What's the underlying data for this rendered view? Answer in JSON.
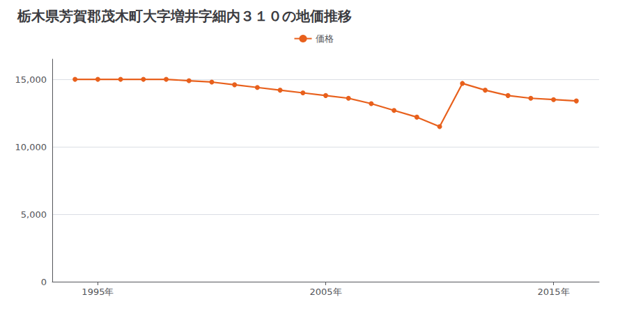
{
  "chart_data": {
    "type": "line",
    "title": "栃木県芳賀郡茂木町大字増井字細内３１０の地価推移",
    "x": [
      1994,
      1995,
      1996,
      1997,
      1998,
      1999,
      2000,
      2001,
      2002,
      2003,
      2004,
      2005,
      2006,
      2007,
      2008,
      2009,
      2010,
      2011,
      2012,
      2013,
      2014,
      2015,
      2016
    ],
    "series": [
      {
        "name": "価格",
        "color": "#e8601c",
        "marker": "circle",
        "values": [
          15000,
          15000,
          15000,
          15000,
          15000,
          14900,
          14800,
          14600,
          14400,
          14200,
          14000,
          13800,
          13600,
          13200,
          12700,
          12200,
          11500,
          14700,
          14200,
          13800,
          13600,
          13500,
          13400
        ]
      }
    ],
    "xlim": [
      1993,
      2017
    ],
    "xticks": [
      {
        "value": 1995,
        "label": "1995年"
      },
      {
        "value": 2005,
        "label": "2005年"
      },
      {
        "value": 2015,
        "label": "2015年"
      }
    ],
    "ylim": [
      0,
      16500
    ],
    "yticks": [
      0,
      {
        "value": 5000,
        "label": "5,000"
      },
      {
        "value": 10000,
        "label": "10,000"
      },
      {
        "value": 15000,
        "label": "15,000"
      }
    ],
    "grid": true,
    "legend": "top"
  }
}
